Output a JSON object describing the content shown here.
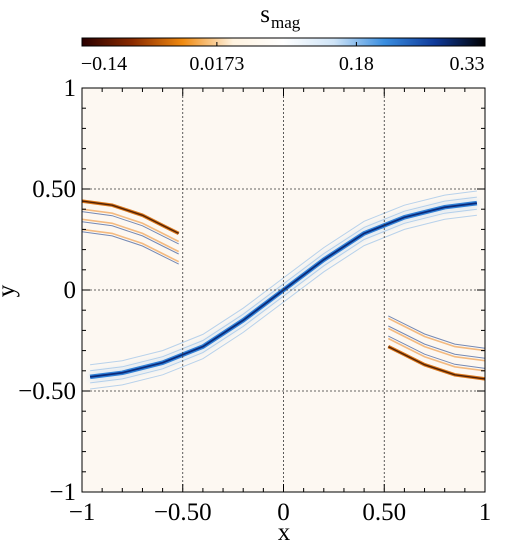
{
  "chart_data": {
    "type": "heatmap",
    "title": "s",
    "title_subscript": "mag",
    "xlabel": "x",
    "ylabel": "y",
    "xlim": [
      -1,
      1
    ],
    "ylim": [
      -1,
      1
    ],
    "xticks": [
      -1,
      -0.5,
      0,
      0.5,
      1
    ],
    "xtick_labels": [
      "−1",
      "−0.50",
      "0",
      "0.50",
      "1"
    ],
    "yticks": [
      -1,
      -0.5,
      0,
      0.5,
      1
    ],
    "ytick_labels": [
      "−1",
      "−0.50",
      "0",
      "0.50",
      "1"
    ],
    "grid": true,
    "colorbar": {
      "range": [
        -0.14,
        0.33
      ],
      "ticks": [
        -0.14,
        0.0173,
        0.18,
        0.33
      ],
      "tick_labels": [
        "−0.14",
        "0.0173",
        "0.18",
        "0.33"
      ],
      "colors": [
        "#2a0000",
        "#8a2a00",
        "#f08a10",
        "#fff3e0",
        "#ffffff",
        "#cfe4f7",
        "#3a8ee0",
        "#0f3a9a",
        "#000000"
      ]
    },
    "background_color": "#fdf8f2",
    "structures": [
      {
        "kind": "positive-filament",
        "x": [
          -0.96,
          -0.8,
          -0.6,
          -0.4,
          -0.2,
          0,
          0.2,
          0.4,
          0.6,
          0.8,
          0.96
        ],
        "y": [
          -0.43,
          -0.41,
          -0.36,
          -0.28,
          -0.15,
          0,
          0.15,
          0.28,
          0.36,
          0.41,
          0.43
        ],
        "value": 0.33
      },
      {
        "kind": "negative-arc",
        "x": [
          -1.0,
          -0.85,
          -0.7,
          -0.6,
          -0.52
        ],
        "y": [
          0.44,
          0.42,
          0.37,
          0.32,
          0.28
        ],
        "value": -0.14
      },
      {
        "kind": "negative-arc",
        "x": [
          0.52,
          0.6,
          0.7,
          0.85,
          1.0
        ],
        "y": [
          -0.28,
          -0.32,
          -0.37,
          -0.42,
          -0.44
        ],
        "value": -0.14
      }
    ]
  }
}
